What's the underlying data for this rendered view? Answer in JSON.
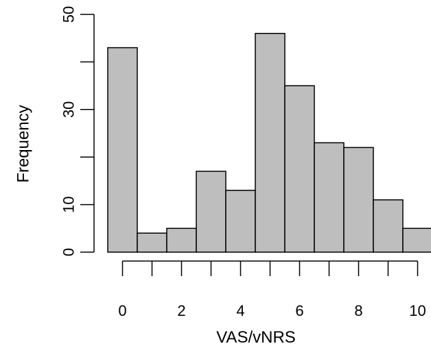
{
  "chart_data": {
    "type": "bar",
    "title": "",
    "xlabel": "VAS/vNRS",
    "ylabel": "Frequency",
    "bin_centers": [
      0,
      1,
      2,
      3,
      4,
      5,
      6,
      7,
      8,
      9,
      10
    ],
    "values": [
      43,
      4,
      5,
      17,
      13,
      46,
      35,
      23,
      22,
      11,
      5
    ],
    "x_ticks": [
      0,
      1,
      2,
      3,
      4,
      5,
      6,
      7,
      8,
      9,
      10
    ],
    "x_tick_labels": [
      "0",
      "2",
      "4",
      "6",
      "8",
      "10"
    ],
    "x_tick_label_values": [
      0,
      2,
      4,
      6,
      8,
      10
    ],
    "y_ticks": [
      0,
      10,
      20,
      30,
      40,
      50
    ],
    "y_tick_labels": [
      "0",
      "10",
      "30",
      "50"
    ],
    "y_tick_label_values": [
      0,
      10,
      30,
      50
    ],
    "xlim": [
      -0.5,
      10.5
    ],
    "ylim": [
      0,
      50
    ],
    "grid": false,
    "bar_color": "#bebebe"
  }
}
